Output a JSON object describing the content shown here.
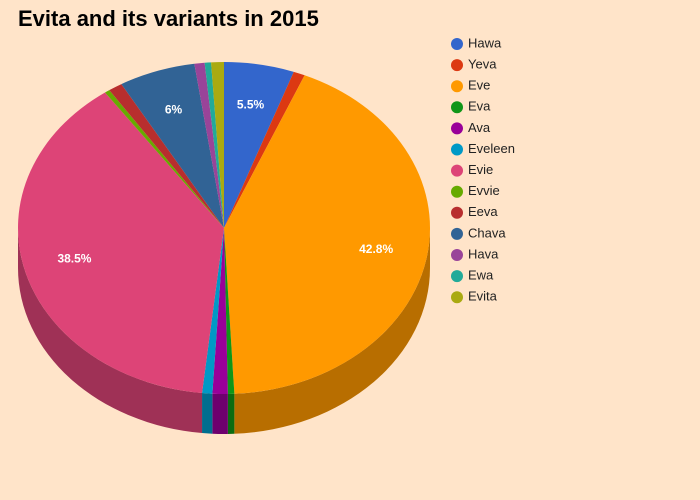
{
  "chart_data": {
    "type": "pie3d",
    "title": "Evita and its variants in 2015",
    "categories": [
      "Hawa",
      "Yeva",
      "Eve",
      "Eva",
      "Ava",
      "Eveleen",
      "Evie",
      "Evvie",
      "Eeva",
      "Chava",
      "Hava",
      "Ewa",
      "Evita"
    ],
    "values": [
      5.5,
      0.9,
      42.8,
      0.5,
      1.2,
      0.8,
      38.5,
      0.4,
      1.1,
      6,
      0.8,
      0.5,
      1.0
    ],
    "value_labels": [
      "5.5%",
      null,
      "42.8%",
      null,
      null,
      null,
      "38.5%",
      null,
      null,
      "6%",
      null,
      null,
      null
    ],
    "colors": [
      "#3366cc",
      "#dc3912",
      "#ff9900",
      "#109618",
      "#990099",
      "#0099c6",
      "#dd4477",
      "#66aa00",
      "#b82e2e",
      "#316395",
      "#994499",
      "#22aa99",
      "#aaaa11"
    ],
    "legend": "right"
  }
}
